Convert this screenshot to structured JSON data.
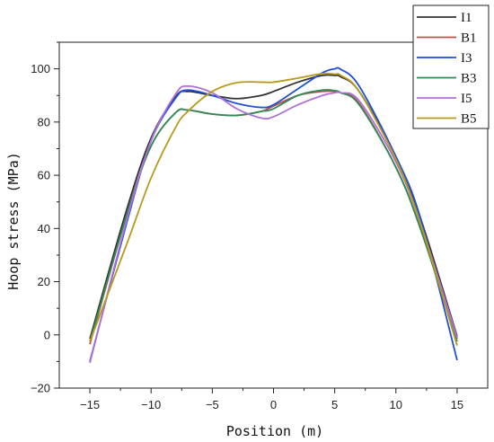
{
  "chart_data": {
    "type": "line",
    "title": "",
    "xlabel": "Position (m)",
    "ylabel": "Hoop stress (MPa)",
    "xlim": [
      -17.5,
      17.5
    ],
    "ylim": [
      -20,
      110
    ],
    "xticks": [
      -15,
      -10,
      -5,
      0,
      5,
      10,
      15
    ],
    "yticks": [
      -20,
      0,
      20,
      40,
      60,
      80,
      100
    ],
    "grid": false,
    "legend_position": "top-right",
    "x": [
      -15,
      -12,
      -10,
      -8,
      -7,
      -5,
      -3,
      -1,
      0,
      2,
      4,
      5,
      5.5,
      7,
      10,
      12,
      15
    ],
    "series": [
      {
        "name": "I1",
        "color": "#333333",
        "values": [
          -1.5,
          47,
          74,
          89.5,
          91.5,
          90,
          88.8,
          90,
          91.5,
          95,
          97.5,
          97.5,
          97,
          91.5,
          67,
          44,
          -0.5
        ]
      },
      {
        "name": "B1",
        "color": "#c0504d",
        "values": [
          -3.5,
          45,
          71,
          83.5,
          84.5,
          83,
          82.5,
          84,
          86,
          90,
          91.5,
          91.5,
          91,
          87,
          63,
          40,
          -1.5
        ]
      },
      {
        "name": "I3",
        "color": "#1f4fd6",
        "values": [
          -10,
          42,
          73,
          89,
          92,
          90,
          87,
          85.5,
          86.5,
          92.5,
          98.5,
          100,
          99.8,
          93.5,
          67,
          44,
          -9.5
        ]
      },
      {
        "name": "B3",
        "color": "#2e8b57",
        "values": [
          -2.5,
          45,
          71,
          83.5,
          84.5,
          83,
          82.5,
          84,
          85,
          90,
          92,
          91.8,
          91,
          86.5,
          63,
          40,
          -2.5
        ]
      },
      {
        "name": "I5",
        "color": "#b070d8",
        "values": [
          -10.5,
          43,
          73,
          90.5,
          93.5,
          91,
          85,
          81.5,
          82,
          86.5,
          90,
          91,
          91,
          88,
          65,
          42,
          -1
        ]
      },
      {
        "name": "B5",
        "color": "#b89a1a",
        "values": [
          -2.5,
          34,
          59,
          78,
          84,
          91.5,
          94.8,
          95,
          95,
          96.5,
          98.2,
          98,
          97.5,
          91.5,
          66,
          42,
          -4
        ]
      }
    ]
  }
}
